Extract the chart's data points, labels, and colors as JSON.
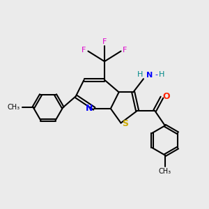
{
  "bg_color": "#ebebeb",
  "bond_color": "#000000",
  "N_color": "#0000ff",
  "S_color": "#ccaa00",
  "O_color": "#ff2200",
  "F_color": "#dd00cc",
  "NH_color": "#008888",
  "lw": 1.5,
  "xlim": [
    0,
    10
  ],
  "ylim": [
    0,
    10
  ]
}
